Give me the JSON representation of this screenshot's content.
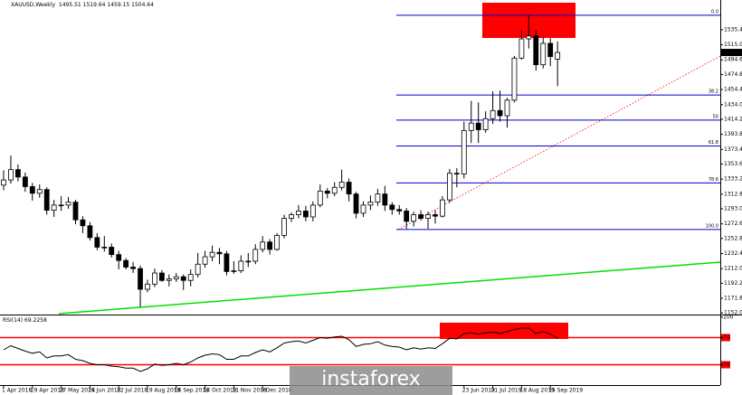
{
  "chart_data": [
    {
      "type": "candlestick",
      "title": "XAUUSD,Weekly",
      "categories": [
        "1 Apr 2018",
        null,
        null,
        null,
        "29 Apr 2018",
        null,
        null,
        null,
        "27 May 2018",
        null,
        null,
        null,
        "24 Jun 2018",
        null,
        null,
        null,
        "22 Jul 2018",
        null,
        null,
        null,
        "19 Aug 2018",
        null,
        null,
        null,
        "16 Sep 2018",
        null,
        null,
        null,
        "14 Oct 2018",
        null,
        null,
        null,
        "11 Nov 2018",
        null,
        null,
        null,
        "9 Dec 2018",
        null,
        null,
        null,
        null,
        null,
        null,
        null,
        null,
        null,
        null,
        null,
        null,
        null,
        null,
        null,
        null,
        null,
        null,
        null,
        null,
        null,
        null,
        null,
        null,
        null,
        null,
        null,
        "23 Jun 2019",
        null,
        null,
        null,
        "21 Jul 2019",
        null,
        null,
        null,
        "18 Aug 2019",
        null,
        null,
        null,
        "15 Sep 2019",
        null
      ],
      "open": [
        1325,
        1332,
        1346,
        1336,
        1323,
        1314,
        1319,
        1291,
        1298,
        1298,
        1302,
        1278,
        1270,
        1254,
        1241,
        1241,
        1231,
        1223,
        1214,
        1212,
        1184,
        1191,
        1206,
        1196,
        1198,
        1201,
        1196,
        1204,
        1218,
        1228,
        1234,
        1232,
        1208,
        1209,
        1222,
        1222,
        1238,
        1248,
        1238,
        1257,
        1280,
        1285,
        1290,
        1282,
        1298,
        1317,
        1314,
        1322,
        1329,
        1313,
        1287,
        1298,
        1302,
        1313,
        1298,
        1292,
        1290,
        1276,
        1285,
        1280,
        1285,
        1283,
        1305,
        1341,
        1340,
        1399,
        1409,
        1400,
        1415,
        1426,
        1419,
        1440,
        1497,
        1523,
        1527,
        1488,
        1517,
        1495.51
      ],
      "high": [
        1345,
        1365,
        1353,
        1342,
        1328,
        1326,
        1322,
        1305,
        1310,
        1309,
        1305,
        1283,
        1275,
        1260,
        1256,
        1246,
        1236,
        1226,
        1221,
        1216,
        1197,
        1212,
        1210,
        1204,
        1206,
        1204,
        1211,
        1233,
        1236,
        1243,
        1240,
        1236,
        1222,
        1230,
        1233,
        1245,
        1256,
        1252,
        1260,
        1285,
        1288,
        1298,
        1297,
        1303,
        1326,
        1321,
        1329,
        1346,
        1334,
        1316,
        1303,
        1311,
        1320,
        1324,
        1302,
        1298,
        1294,
        1289,
        1291,
        1289,
        1291,
        1310,
        1347,
        1348,
        1411,
        1439,
        1437,
        1425,
        1452,
        1453,
        1443,
        1500,
        1535,
        1555,
        1535,
        1525,
        1524,
        1519.64
      ],
      "low": [
        1318,
        1327,
        1330,
        1316,
        1304,
        1308,
        1285,
        1282,
        1290,
        1293,
        1272,
        1260,
        1250,
        1237,
        1235,
        1227,
        1211,
        1211,
        1206,
        1160,
        1180,
        1187,
        1194,
        1188,
        1194,
        1183,
        1188,
        1200,
        1213,
        1222,
        1218,
        1203,
        1205,
        1206,
        1214,
        1218,
        1234,
        1231,
        1236,
        1253,
        1275,
        1280,
        1276,
        1276,
        1295,
        1307,
        1310,
        1318,
        1303,
        1280,
        1282,
        1291,
        1297,
        1290,
        1285,
        1285,
        1266,
        1269,
        1277,
        1266,
        1273,
        1281,
        1301,
        1322,
        1334,
        1382,
        1382,
        1396,
        1408,
        1411,
        1403,
        1437,
        1495,
        1510,
        1480,
        1483,
        1486,
        1459.15
      ],
      "close": [
        1332,
        1346,
        1336,
        1323,
        1314,
        1319,
        1291,
        1298,
        1298,
        1302,
        1278,
        1270,
        1254,
        1241,
        1241,
        1231,
        1223,
        1214,
        1212,
        1184,
        1191,
        1206,
        1196,
        1198,
        1201,
        1196,
        1204,
        1218,
        1228,
        1234,
        1232,
        1208,
        1209,
        1222,
        1222,
        1238,
        1248,
        1238,
        1257,
        1280,
        1285,
        1290,
        1282,
        1298,
        1317,
        1314,
        1322,
        1329,
        1313,
        1287,
        1298,
        1302,
        1313,
        1298,
        1292,
        1290,
        1276,
        1285,
        1280,
        1285,
        1283,
        1305,
        1341,
        1340,
        1399,
        1409,
        1400,
        1415,
        1426,
        1419,
        1440,
        1497,
        1523,
        1527,
        1488,
        1517,
        1499,
        1504.64
      ],
      "up_color": "#ffffff",
      "down_color": "#000000",
      "ylim": [
        1151,
        1572
      ],
      "yticks": [
        {
          "value": 1535.4,
          "label": "1535.40"
        },
        {
          "value": 1515,
          "label": "1515.00"
        },
        {
          "value": 1494.6,
          "label": "1494.60"
        },
        {
          "value": 1474.8,
          "label": "1474.80"
        },
        {
          "value": 1454.4,
          "label": "1454.40"
        },
        {
          "value": 1434,
          "label": "1434.00"
        },
        {
          "value": 1414.2,
          "label": "1414.20"
        },
        {
          "value": 1393.8,
          "label": "1393.80"
        },
        {
          "value": 1373.4,
          "label": "1373.40"
        },
        {
          "value": 1353.6,
          "label": "1353.60"
        },
        {
          "value": 1333.2,
          "label": "1333.20"
        },
        {
          "value": 1312.8,
          "label": "1312.80"
        },
        {
          "value": 1293,
          "label": "1293.00"
        },
        {
          "value": 1272.6,
          "label": "1272.60"
        },
        {
          "value": 1252.8,
          "label": "1252.80"
        },
        {
          "value": 1232.4,
          "label": "1232.40"
        },
        {
          "value": 1212,
          "label": "1212.00"
        },
        {
          "value": 1192.2,
          "label": "1192.20"
        },
        {
          "value": 1171.8,
          "label": "1171.80"
        },
        {
          "value": 1152,
          "label": "1152.00"
        }
      ],
      "fibonacci": {
        "color": "#0000cc",
        "levels": [
          {
            "label": "0.0",
            "price": 1555
          },
          {
            "label": "38.2",
            "price": 1447
          },
          {
            "label": "50",
            "price": 1413
          },
          {
            "label": "61.8",
            "price": 1378
          },
          {
            "label": "78.6",
            "price": 1328
          },
          {
            "label": "100.0",
            "price": 1265
          }
        ]
      }
    },
    {
      "type": "line",
      "title": "RSI(14)",
      "color": "#000000",
      "values": [
        52,
        58,
        54,
        50,
        47,
        49,
        40,
        43,
        43,
        45,
        38,
        36,
        32,
        30,
        30,
        28,
        27,
        25,
        25,
        20,
        24,
        31,
        29,
        30,
        32,
        30,
        34,
        40,
        44,
        46,
        45,
        38,
        38,
        43,
        43,
        48,
        52,
        49,
        55,
        62,
        64,
        65,
        62,
        66,
        70,
        69,
        71,
        72,
        67,
        57,
        60,
        61,
        64,
        59,
        57,
        56,
        52,
        55,
        53,
        55,
        54,
        61,
        69,
        68,
        76,
        77,
        75,
        77,
        78,
        76,
        79,
        82,
        84,
        84,
        76,
        79,
        75,
        69.2258
      ],
      "ylim": [
        0,
        100
      ],
      "yticks": [
        100,
        70,
        30
      ],
      "levels": [
        70,
        30
      ],
      "level_color": "#ff0000"
    }
  ],
  "watermark": "instaforex"
}
